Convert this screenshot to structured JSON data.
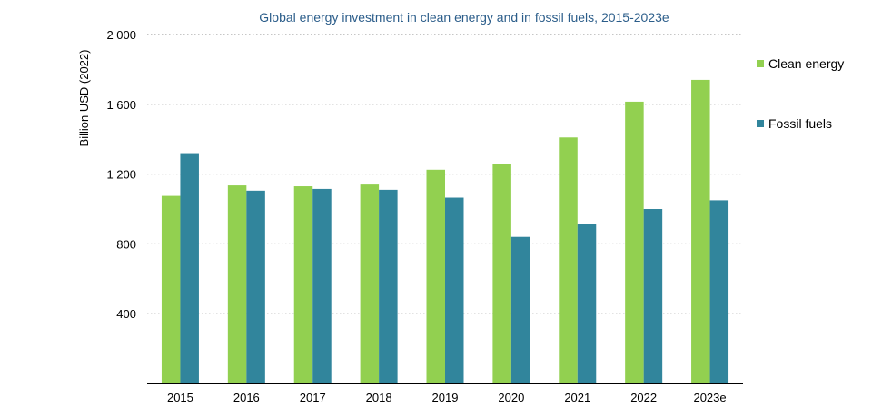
{
  "chart_data": {
    "type": "bar",
    "title": "Global energy investment in clean energy and in fossil fuels, 2015-2023e",
    "xlabel": "",
    "ylabel": "Billion USD (2022)",
    "ylim": [
      0,
      2000
    ],
    "yticks": [
      400,
      800,
      1200,
      1600,
      2000
    ],
    "ytick_labels": [
      "400",
      "800",
      "1 200",
      "1 600",
      "2 000"
    ],
    "grid": true,
    "legend_position": "right",
    "categories": [
      "2015",
      "2016",
      "2017",
      "2018",
      "2019",
      "2020",
      "2021",
      "2022",
      "2023e"
    ],
    "series": [
      {
        "name": "Clean energy",
        "color": "#92d050",
        "values": [
          1075,
          1135,
          1130,
          1140,
          1225,
          1260,
          1410,
          1615,
          1740
        ]
      },
      {
        "name": "Fossil fuels",
        "color": "#31859c",
        "values": [
          1320,
          1105,
          1115,
          1110,
          1065,
          840,
          915,
          1000,
          1050
        ]
      }
    ]
  }
}
